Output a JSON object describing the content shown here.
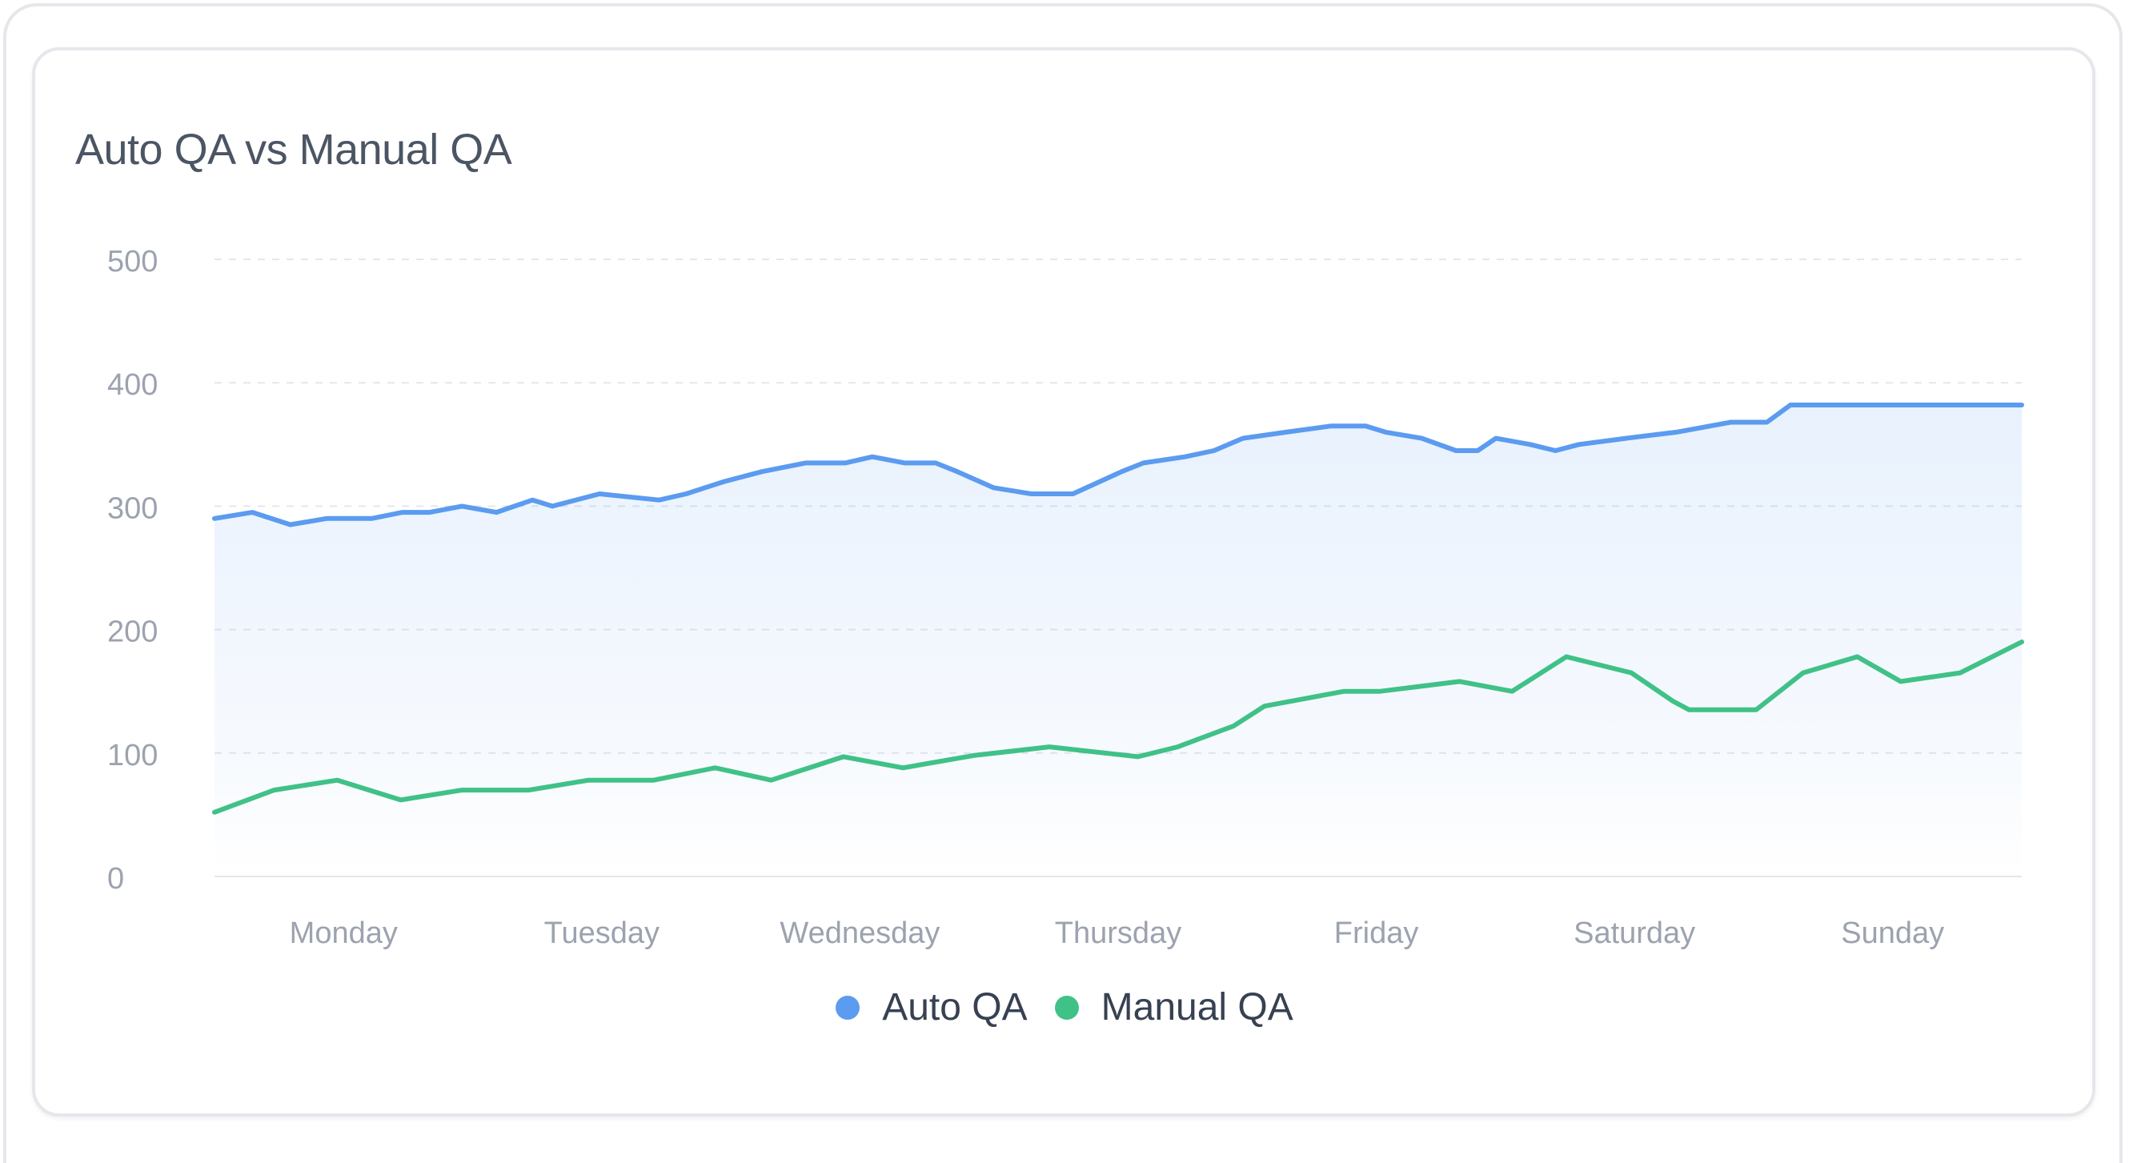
{
  "card": {
    "title": "Auto QA vs Manual QA"
  },
  "legend": {
    "items": [
      {
        "label": "Auto QA",
        "color": "#5b9bf0"
      },
      {
        "label": "Manual QA",
        "color": "#40c187"
      }
    ]
  },
  "chart_data": {
    "type": "line",
    "title": "Auto QA vs Manual QA",
    "xlabel": "",
    "ylabel": "",
    "ylim": [
      0,
      500
    ],
    "yticks": [
      "0",
      "100",
      "200",
      "300",
      "400",
      "500"
    ],
    "categories": [
      "Monday",
      "Tuesday",
      "Wednesday",
      "Thursday",
      "Friday",
      "Saturday",
      "Sunday"
    ],
    "grid": true,
    "legend_position": "bottom",
    "area_fill_series": "Auto QA",
    "series": [
      {
        "name": "Auto QA",
        "color": "#5b9bf0",
        "x": [
          0,
          0.21,
          0.42,
          0.62,
          0.87,
          1.04,
          1.19,
          1.37,
          1.56,
          1.76,
          1.87,
          2.13,
          2.46,
          2.61,
          2.82,
          3.03,
          3.27,
          3.49,
          3.64,
          3.82,
          3.99,
          4.11,
          4.31,
          4.52,
          4.75,
          5.02,
          5.14,
          5.37,
          5.53,
          5.69,
          5.93,
          6.18,
          6.37,
          6.48,
          6.68,
          6.87,
          6.99,
          7.09,
          7.28,
          7.42,
          7.55,
          7.81,
          8.09,
          8.39,
          8.59,
          8.72,
          8.96,
          9.1,
          9.26,
          9.4,
          9.62,
          9.81,
          10.0
        ],
        "y": [
          290,
          295,
          285,
          290,
          290,
          295,
          295,
          300,
          295,
          305,
          300,
          310,
          305,
          310,
          320,
          328,
          335,
          335,
          340,
          335,
          335,
          328,
          315,
          310,
          310,
          328,
          335,
          340,
          345,
          355,
          360,
          365,
          365,
          360,
          355,
          345,
          345,
          355,
          350,
          345,
          350,
          355,
          360,
          368,
          368,
          382,
          382,
          382,
          382,
          382,
          382,
          382,
          382
        ],
        "values_note": ""
      },
      {
        "name": "Manual QA",
        "color": "#40c187",
        "x": [
          0,
          0.33,
          0.68,
          1.03,
          1.37,
          1.74,
          2.07,
          2.43,
          2.77,
          3.08,
          3.48,
          3.81,
          4.2,
          4.62,
          5.11,
          5.33,
          5.64,
          5.81,
          6.25,
          6.45,
          6.89,
          7.18,
          7.48,
          7.84,
          8.07,
          8.16,
          8.53,
          8.79,
          9.09,
          9.33,
          9.66,
          10.0
        ],
        "y": [
          52,
          70,
          78,
          62,
          70,
          70,
          78,
          78,
          88,
          78,
          97,
          88,
          98,
          105,
          97,
          105,
          122,
          138,
          150,
          150,
          158,
          150,
          178,
          165,
          142,
          135,
          135,
          165,
          178,
          158,
          165,
          190
        ]
      }
    ]
  }
}
